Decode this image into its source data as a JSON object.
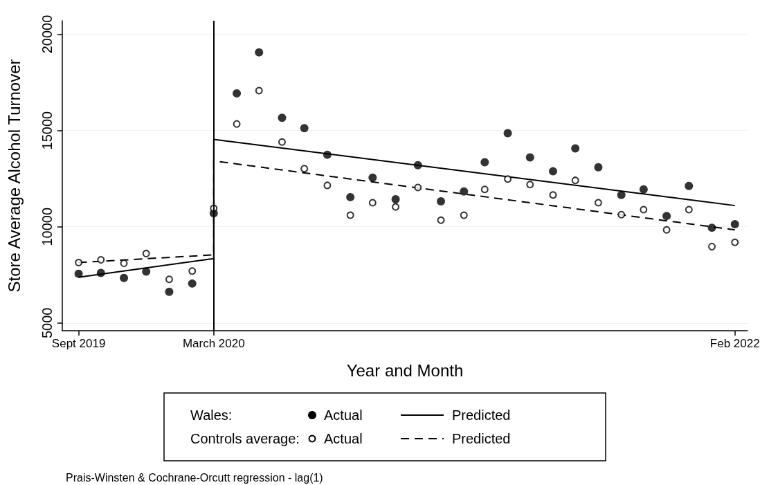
{
  "chart_data": {
    "type": "scatter",
    "xlabel": "Year and Month",
    "ylabel": "Store Average Alcohol Turnover",
    "x": [
      "2019-09",
      "2019-10",
      "2019-11",
      "2019-12",
      "2020-01",
      "2020-02",
      "2020-03",
      "2020-04",
      "2020-05",
      "2020-06",
      "2020-07",
      "2020-08",
      "2020-09",
      "2020-10",
      "2020-11",
      "2020-12",
      "2021-01",
      "2021-02",
      "2021-03",
      "2021-04",
      "2021-05",
      "2021-06",
      "2021-07",
      "2021-08",
      "2021-09",
      "2021-10",
      "2021-11",
      "2021-12",
      "2022-01",
      "2022-02"
    ],
    "series": [
      {
        "name": "Actual",
        "marker": "circle",
        "color": "#000000",
        "values": [
          7560,
          7600,
          7340,
          7670,
          6620,
          7050,
          10700,
          16930,
          19060,
          15660,
          15120,
          13740,
          11540,
          12550,
          11430,
          13200,
          11320,
          11830,
          13350,
          14860,
          13600,
          12880,
          14070,
          13090,
          11650,
          11940,
          10560,
          12120,
          9950,
          10130
        ]
      },
      {
        "name": "Predicted",
        "type": "line",
        "marker": "none",
        "line_style": "solid",
        "color": "#000000",
        "x": [
          "2019-09",
          "2020-03",
          "2020-03",
          "2022-02"
        ],
        "values": [
          7380,
          8350,
          14540,
          11100
        ]
      },
      {
        "name": "Actual",
        "marker": "circle",
        "color": "#000000",
        "values": [
          8140,
          8280,
          8100,
          8610,
          7270,
          7700,
          10960,
          15340,
          17070,
          14400,
          13020,
          12150,
          10600,
          11250,
          11030,
          12040,
          10340,
          10600,
          11940,
          12480,
          12190,
          11650,
          12410,
          11250,
          10630,
          10890,
          9840,
          10890,
          8970,
          9190
        ]
      },
      {
        "name": "Predicted",
        "type": "line",
        "marker": "none",
        "line_style": "dashed",
        "color": "#000000",
        "x": [
          "2019-09",
          "2020-03",
          "2020-03",
          "2022-02"
        ],
        "values": [
          8140,
          8540,
          13420,
          9840
        ]
      }
    ],
    "xlim": [
      "2019-08-10",
      "2022-02-18"
    ],
    "xticks": [
      {
        "value": "2019-09",
        "label": "Sept 2019"
      },
      {
        "value": "2020-03",
        "label": "March 2020"
      },
      {
        "value": "2022-02",
        "label": "Feb 2022"
      }
    ],
    "ylim": [
      4600,
      20700
    ],
    "yticks": [
      5000,
      10000,
      15000,
      20000
    ],
    "ref_lines": [
      {
        "axis": "x",
        "value": "2020-03",
        "label": null,
        "color": "#000000",
        "line_style": "solid"
      }
    ],
    "grid": "y",
    "legend": "bottom",
    "annotations": [
      "Wales:",
      "Controls average:",
      "Prais-Winsten & Cochrane-Orcutt regression - lag(1)"
    ]
  }
}
